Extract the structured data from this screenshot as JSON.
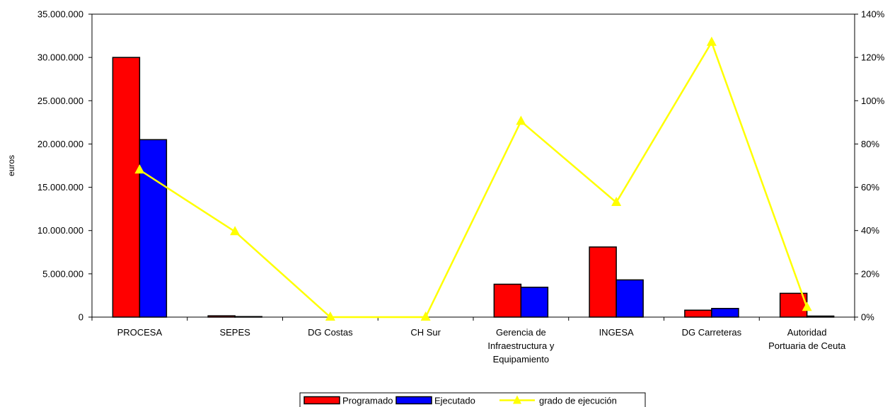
{
  "chart_data": {
    "type": "bar",
    "categories": [
      [
        "PROCESA"
      ],
      [
        "SEPES"
      ],
      [
        "DG Costas"
      ],
      [
        "CH Sur"
      ],
      [
        "Gerencia de",
        "Infraestructura y",
        "Equipamiento"
      ],
      [
        "INGESA"
      ],
      [
        "DG Carreteras"
      ],
      [
        "Autoridad",
        "Portuaria de Ceuta"
      ]
    ],
    "series": [
      {
        "name": "Programado",
        "color": "#ff0000",
        "axis": "left",
        "kind": "bar",
        "values": [
          30000000,
          150000,
          0,
          0,
          3800000,
          8100000,
          800000,
          2750000
        ]
      },
      {
        "name": "Ejecutado",
        "color": "#0000ff",
        "axis": "left",
        "kind": "bar",
        "values": [
          20500000,
          60000,
          0,
          0,
          3450000,
          4300000,
          1000000,
          120000
        ]
      },
      {
        "name": "grado de ejecución",
        "color": "#ffff00",
        "axis": "right",
        "kind": "line",
        "marker": "triangle",
        "values": [
          0.68,
          0.395,
          0.0,
          0.0,
          0.905,
          0.53,
          1.27,
          0.045
        ]
      }
    ],
    "ylabel": "euros",
    "ylim": [
      0,
      35000000
    ],
    "y_ticks": [
      0,
      5000000,
      10000000,
      15000000,
      20000000,
      25000000,
      30000000,
      35000000
    ],
    "y_tick_labels": [
      "0",
      "5.000.000",
      "10.000.000",
      "15.000.000",
      "20.000.000",
      "25.000.000",
      "30.000.000",
      "35.000.000"
    ],
    "y2lim": [
      0,
      1.4
    ],
    "y2_ticks": [
      0,
      0.2,
      0.4,
      0.6,
      0.8,
      1.0,
      1.2,
      1.4
    ],
    "y2_tick_labels": [
      "0%",
      "20%",
      "40%",
      "60%",
      "80%",
      "100%",
      "120%",
      "140%"
    ],
    "grid": false,
    "legend_position": "bottom"
  }
}
